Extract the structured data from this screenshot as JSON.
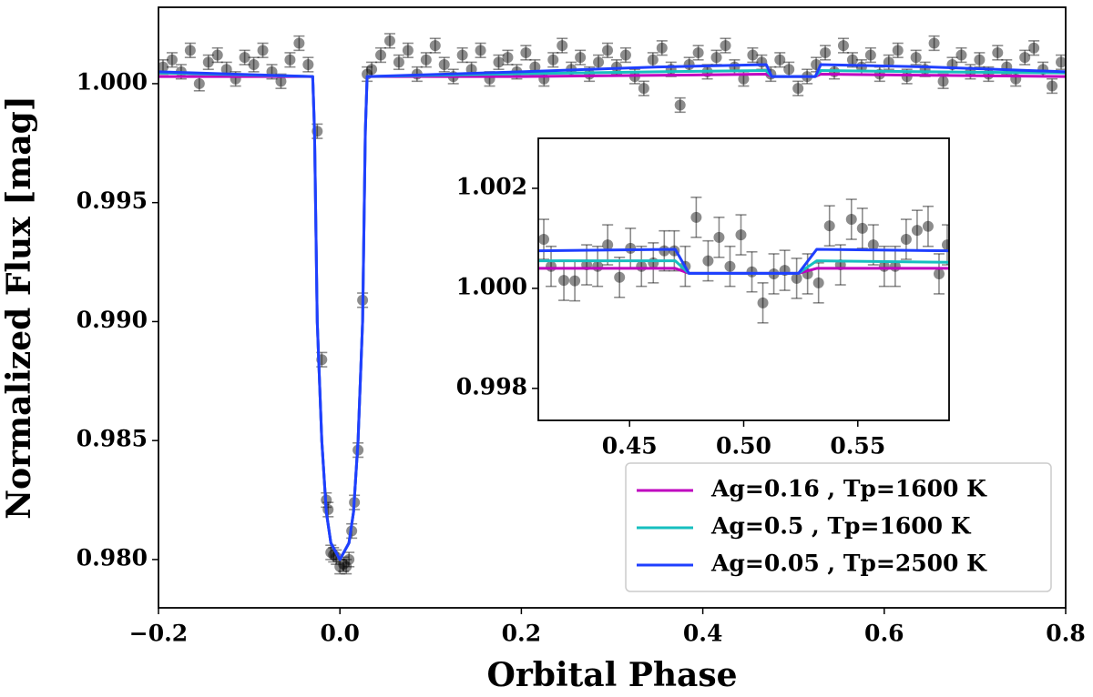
{
  "chart_data": [
    {
      "type": "scatter",
      "xlabel": "Orbital Phase",
      "ylabel": "Normalized Flux [mag]",
      "xlim": [
        -0.2,
        0.8
      ],
      "ylim": [
        0.97797,
        1.00321
      ],
      "xticks": [
        {
          "value": -0.2,
          "label": "−0.2"
        },
        {
          "value": 0,
          "label": "0.0"
        },
        0.2,
        0.4,
        0.6,
        0.8
      ],
      "yticks": [
        {
          "value": 0.98,
          "label": "0.980"
        },
        {
          "value": 0.985,
          "label": "0.985"
        },
        {
          "value": 0.99,
          "label": "0.990"
        },
        {
          "value": 0.995,
          "label": "0.995"
        },
        {
          "value": 1.0,
          "label": "1.000"
        }
      ],
      "legend": "lower right",
      "points": {
        "color": "#000000",
        "yerr": 0.0003,
        "x": [
          -0.195,
          -0.185,
          -0.175,
          -0.165,
          -0.155,
          -0.145,
          -0.135,
          -0.125,
          -0.115,
          -0.105,
          -0.095,
          -0.085,
          -0.075,
          -0.065,
          -0.055,
          -0.045,
          -0.035,
          -0.025,
          -0.02,
          -0.015,
          -0.013,
          -0.01,
          -0.007,
          -0.004,
          0,
          0.004,
          0.007,
          0.01,
          0.013,
          0.016,
          0.02,
          0.025,
          0.03,
          0.035,
          0.045,
          0.055,
          0.065,
          0.075,
          0.085,
          0.095,
          0.105,
          0.115,
          0.125,
          0.135,
          0.145,
          0.155,
          0.165,
          0.175,
          0.185,
          0.195,
          0.205,
          0.215,
          0.225,
          0.235,
          0.245,
          0.255,
          0.265,
          0.275,
          0.285,
          0.295,
          0.305,
          0.315,
          0.325,
          0.335,
          0.345,
          0.355,
          0.365,
          0.375,
          0.385,
          0.395,
          0.405,
          0.415,
          0.425,
          0.435,
          0.445,
          0.455,
          0.465,
          0.475,
          0.485,
          0.495,
          0.505,
          0.515,
          0.525,
          0.535,
          0.545,
          0.555,
          0.565,
          0.575,
          0.585,
          0.595,
          0.605,
          0.615,
          0.625,
          0.635,
          0.645,
          0.655,
          0.665,
          0.675,
          0.685,
          0.695,
          0.705,
          0.715,
          0.725,
          0.735,
          0.745,
          0.755,
          0.765,
          0.775,
          0.785,
          0.795
        ],
        "values": [
          1.0007,
          1.001,
          1.0005,
          1.0014,
          1.0,
          1.0009,
          1.0012,
          1.0006,
          1.0002,
          1.0011,
          1.0008,
          1.0014,
          1.0005,
          1.0001,
          1.001,
          1.0017,
          1.0008,
          0.998,
          0.9884,
          0.9825,
          0.9821,
          0.9803,
          0.9802,
          0.9801,
          0.9797,
          0.9798,
          0.9797,
          0.98,
          0.9812,
          0.9824,
          0.9846,
          0.9909,
          1.0004,
          1.0006,
          1.0012,
          1.0018,
          1.0009,
          1.0014,
          1.0004,
          1.001,
          1.0016,
          1.0008,
          1.0003,
          1.0012,
          1.0006,
          1.0014,
          1.0002,
          1.0009,
          1.0011,
          1.0005,
          1.0013,
          1.0007,
          1.0002,
          1.001,
          1.0016,
          1.0006,
          1.0011,
          1.0004,
          1.0009,
          1.0014,
          1.0007,
          1.0012,
          1.0003,
          0.9998,
          1.001,
          1.0015,
          1.0006,
          0.9991,
          1.0008,
          1.0013,
          1.0005,
          1.0011,
          1.0016,
          1.0007,
          1.0002,
          1.0012,
          1.0009,
          1.0004,
          1.001,
          1.0006,
          0.9998,
          1.0003,
          1.0008,
          1.0013,
          1.0005,
          1.0016,
          1.001,
          1.0007,
          1.0012,
          1.0004,
          1.0009,
          1.0014,
          1.0003,
          1.0011,
          1.0006,
          1.0017,
          1.0001,
          1.0008,
          1.0012,
          1.0005,
          1.001,
          1.0004,
          1.0013,
          1.0007,
          1.0002,
          1.0011,
          1.0015,
          1.0006,
          0.9999,
          1.0009
        ]
      },
      "x": [
        -0.2,
        -0.03,
        -0.028,
        -0.025,
        -0.02,
        -0.015,
        -0.01,
        0,
        0.01,
        0.015,
        0.02,
        0.025,
        0.028,
        0.03,
        0.2,
        0.35,
        0.47,
        0.476,
        0.524,
        0.53,
        0.65,
        0.8
      ],
      "series": [
        {
          "name": "Ag=0.16 , Tp=1600 K",
          "color": "#bf00bf",
          "values": [
            1.0003,
            1.0003,
            0.998,
            0.99,
            0.985,
            0.982,
            0.9807,
            0.98,
            0.9807,
            0.982,
            0.985,
            0.99,
            0.998,
            1.0003,
            1.0003,
            1.00035,
            1.0004,
            1.0003,
            1.0003,
            1.0004,
            1.00035,
            1.0003
          ]
        },
        {
          "name": "Ag=0.5 , Tp=1600 K",
          "color": "#17bfbf",
          "values": [
            1.00045,
            1.0003,
            0.998,
            0.99,
            0.985,
            0.982,
            0.9807,
            0.98,
            0.9807,
            0.982,
            0.985,
            0.99,
            0.998,
            1.0003,
            1.00042,
            1.0005,
            1.00055,
            1.0003,
            1.0003,
            1.00055,
            1.0005,
            1.00045
          ]
        },
        {
          "name": "Ag=0.05 , Tp=2500 K",
          "color": "#1f3fff",
          "values": [
            1.0005,
            1.0003,
            0.998,
            0.99,
            0.985,
            0.982,
            0.9807,
            0.98,
            0.9807,
            0.982,
            0.985,
            0.99,
            0.998,
            1.0003,
            1.0005,
            1.0007,
            1.0008,
            1.0003,
            1.0003,
            1.0008,
            1.0007,
            1.0005
          ]
        }
      ]
    },
    {
      "type": "scatter",
      "xlim": [
        0.41,
        0.59
      ],
      "ylim": [
        0.99736,
        1.003
      ],
      "xticks": [
        0.45,
        {
          "value": 0.5,
          "label": "0.50"
        },
        0.55
      ],
      "yticks": [
        {
          "value": 0.998,
          "label": "0.998"
        },
        {
          "value": 1.0,
          "label": "1.000"
        },
        {
          "value": 1.002,
          "label": "1.002"
        }
      ],
      "points": {
        "color": "#000000",
        "yerr": 0.0004,
        "x": [
          0.4124,
          0.4156,
          0.4212,
          0.426,
          0.4312,
          0.436,
          0.4404,
          0.4456,
          0.4504,
          0.4552,
          0.4604,
          0.4652,
          0.4696,
          0.4744,
          0.4792,
          0.4844,
          0.4892,
          0.494,
          0.4988,
          0.5036,
          0.5084,
          0.5132,
          0.518,
          0.5232,
          0.528,
          0.5328,
          0.5376,
          0.5424,
          0.5472,
          0.552,
          0.5568,
          0.5616,
          0.5664,
          0.5712,
          0.576,
          0.5808,
          0.5856,
          0.5892
        ],
        "values": [
          1.00098,
          1.00044,
          1.00016,
          1.00015,
          1.00047,
          1.00044,
          1.00087,
          1.00022,
          1.0008,
          1.00044,
          1.00051,
          1.00075,
          1.00075,
          1.00044,
          1.00142,
          1.00055,
          1.00102,
          1.00044,
          1.00107,
          1.00033,
          0.99971,
          1.00029,
          1.00036,
          1.0002,
          1.00029,
          1.00011,
          1.00125,
          1.00047,
          1.00138,
          1.0012,
          1.00087,
          1.00044,
          1.00044,
          1.00098,
          1.00116,
          1.00124,
          1.00029,
          1.00087
        ]
      },
      "x": [
        0.41,
        0.47,
        0.476,
        0.524,
        0.532,
        0.59
      ],
      "series": [
        {
          "color": "#bf00bf",
          "values": [
            1.0004,
            1.0004,
            1.0003,
            1.0003,
            1.0004,
            1.0004
          ]
        },
        {
          "color": "#17bfbf",
          "values": [
            1.00055,
            1.00055,
            1.0003,
            1.0003,
            1.00055,
            1.00052
          ]
        },
        {
          "color": "#1f3fff",
          "values": [
            1.00075,
            1.00078,
            1.0003,
            1.0003,
            1.00078,
            1.00075
          ]
        }
      ]
    }
  ]
}
